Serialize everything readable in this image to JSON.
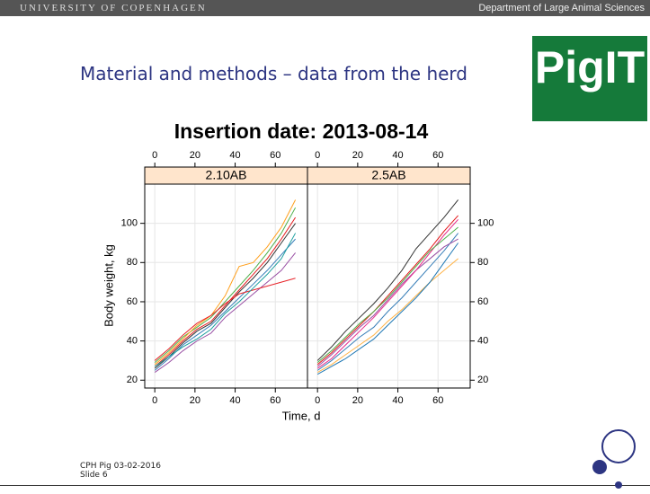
{
  "header": {
    "left": "UNIVERSITY OF COPENHAGEN",
    "right": "Department of Large Animal Sciences"
  },
  "slide_title": "Material and methods – data from the herd",
  "logo": "PigIT",
  "footer": {
    "line1": "CPH Pig 03-02-2016",
    "line2": "Slide 6"
  },
  "chart_data": {
    "type": "line",
    "title": "Insertion date: 2013-08-14",
    "xlabel": "Time, d",
    "ylabel": "Body weight, kg",
    "xlim": [
      -5,
      76
    ],
    "ylim": [
      16,
      120
    ],
    "xticks": [
      0,
      20,
      40,
      60
    ],
    "yticks": [
      20,
      40,
      60,
      80,
      100
    ],
    "grid": true,
    "x": [
      0,
      7,
      14,
      21,
      28,
      35,
      42,
      49,
      56,
      63,
      70
    ],
    "panels": [
      {
        "label": "2.10AB",
        "series": [
          {
            "color": "#e41a1c",
            "values": [
              27,
              33,
              40,
              46,
              50,
              58,
              66,
              74,
              82,
              92,
              103
            ]
          },
          {
            "color": "#377eb8",
            "values": [
              25,
              31,
              38,
              43,
              48,
              55,
              62,
              69,
              76,
              84,
              92
            ]
          },
          {
            "color": "#4daf4a",
            "values": [
              29,
              35,
              42,
              47,
              52,
              60,
              68,
              76,
              85,
              95,
              108
            ]
          },
          {
            "color": "#ff9f1c",
            "values": [
              28,
              34,
              41,
              48,
              53,
              63,
              78,
              80,
              88,
              98,
              112
            ]
          },
          {
            "color": "#984ea3",
            "values": [
              24,
              29,
              35,
              40,
              44,
              52,
              58,
              64,
              70,
              76,
              85
            ]
          },
          {
            "color": "#333333",
            "values": [
              26,
              32,
              39,
              45,
              49,
              57,
              65,
              72,
              80,
              90,
              100
            ]
          },
          {
            "color": "#e8242a",
            "values": [
              30,
              36,
              43,
              49,
              53,
              59,
              64,
              66,
              68,
              70,
              72
            ]
          },
          {
            "color": "#1b9e9e",
            "values": [
              27,
              32,
              37,
              41,
              46,
              54,
              60,
              67,
              74,
              82,
              95
            ]
          }
        ]
      },
      {
        "label": "2.5AB",
        "series": [
          {
            "color": "#e41a1c",
            "values": [
              28,
              34,
              41,
              48,
              55,
              63,
              71,
              79,
              87,
              96,
              104
            ]
          },
          {
            "color": "#377eb8",
            "values": [
              25,
              30,
              36,
              42,
              47,
              55,
              62,
              70,
              78,
              86,
              95
            ]
          },
          {
            "color": "#333333",
            "values": [
              30,
              37,
              45,
              52,
              59,
              67,
              76,
              87,
              95,
              103,
              112
            ]
          },
          {
            "color": "#ffb347",
            "values": [
              24,
              28,
              33,
              38,
              43,
              50,
              56,
              63,
              70,
              76,
              82
            ]
          },
          {
            "color": "#984ea3",
            "values": [
              27,
              33,
              40,
              47,
              53,
              61,
              69,
              76,
              82,
              88,
              92
            ]
          },
          {
            "color": "#e7298a",
            "values": [
              26,
              31,
              38,
              45,
              52,
              60,
              68,
              76,
              85,
              94,
              102
            ]
          },
          {
            "color": "#4daf4a",
            "values": [
              29,
              35,
              42,
              49,
              55,
              62,
              70,
              78,
              86,
              92,
              98
            ]
          },
          {
            "color": "#1f78b4",
            "values": [
              23,
              27,
              31,
              36,
              41,
              48,
              55,
              62,
              70,
              80,
              90
            ]
          }
        ]
      }
    ]
  }
}
